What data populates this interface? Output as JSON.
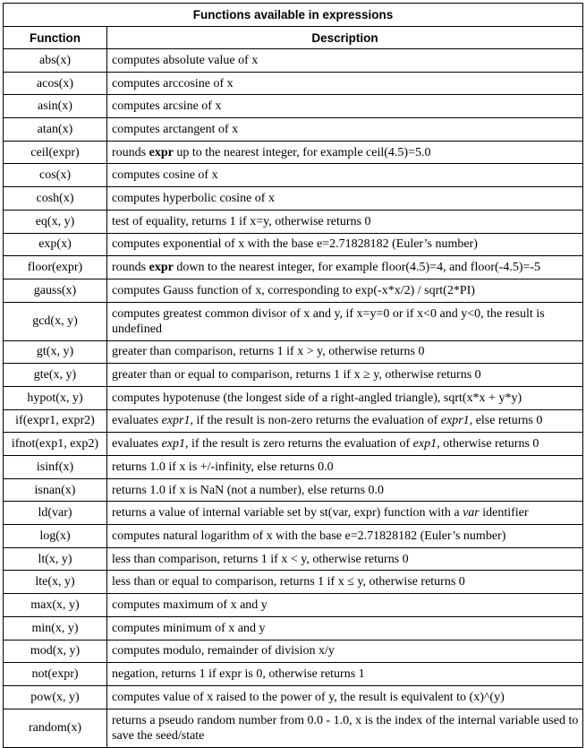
{
  "title": "Functions available in expressions",
  "columns": {
    "function": "Function",
    "description": "Description"
  },
  "rows": [
    {
      "fn": "abs(x)",
      "parts": [
        {
          "t": "computes absolute value of x"
        }
      ]
    },
    {
      "fn": "acos(x)",
      "parts": [
        {
          "t": "computes arccosine of x"
        }
      ]
    },
    {
      "fn": "asin(x)",
      "parts": [
        {
          "t": "computes arcsine of x"
        }
      ]
    },
    {
      "fn": "atan(x)",
      "parts": [
        {
          "t": "computes arctangent of x"
        }
      ]
    },
    {
      "fn": "ceil(expr)",
      "parts": [
        {
          "t": "rounds "
        },
        {
          "t": "expr",
          "b": true
        },
        {
          "t": " up to the nearest integer, for example ceil(4.5)=5.0"
        }
      ]
    },
    {
      "fn": "cos(x)",
      "parts": [
        {
          "t": "computes cosine of x"
        }
      ]
    },
    {
      "fn": "cosh(x)",
      "parts": [
        {
          "t": "computes hyperbolic cosine of x"
        }
      ]
    },
    {
      "fn": "eq(x, y)",
      "parts": [
        {
          "t": "test of equality, returns 1 if x=y, otherwise returns 0"
        }
      ]
    },
    {
      "fn": "exp(x)",
      "parts": [
        {
          "t": "computes exponential of x with the base e=2.71828182 (Euler’s number)"
        }
      ]
    },
    {
      "fn": "floor(expr)",
      "parts": [
        {
          "t": "rounds "
        },
        {
          "t": "expr",
          "b": true
        },
        {
          "t": " down to the nearest integer, for example floor(4.5)=4, and floor(-4.5)=-5"
        }
      ]
    },
    {
      "fn": "gauss(x)",
      "parts": [
        {
          "t": "computes Gauss function of x, corresponding to exp(-x*x/2) / sqrt(2*PI)"
        }
      ]
    },
    {
      "fn": "gcd(x, y)",
      "tall": true,
      "parts": [
        {
          "t": "computes greatest common divisor of x and y, if x=y=0 or if x<0 and y<0, the result is undefined"
        }
      ]
    },
    {
      "fn": "gt(x, y)",
      "parts": [
        {
          "t": "greater than comparison, returns 1 if x > y, otherwise returns 0"
        }
      ]
    },
    {
      "fn": "gte(x, y)",
      "parts": [
        {
          "t": "greater than or equal to comparison, returns 1 if x ≥ y, otherwise returns 0"
        }
      ]
    },
    {
      "fn": "hypot(x, y)",
      "parts": [
        {
          "t": "computes hypotenuse (the longest side of a right-angled triangle), sqrt(x*x + y*y)"
        }
      ]
    },
    {
      "fn": "if(expr1, expr2)",
      "parts": [
        {
          "t": "evaluates "
        },
        {
          "t": "expr1",
          "i": true
        },
        {
          "t": ", if the result is non-zero returns the evaluation of "
        },
        {
          "t": "expr1",
          "i": true
        },
        {
          "t": ", else returns 0"
        }
      ]
    },
    {
      "fn": "ifnot(exp1, exp2)",
      "parts": [
        {
          "t": "evaluates "
        },
        {
          "t": "exp1",
          "i": true
        },
        {
          "t": ", if the result is zero returns the evaluation of "
        },
        {
          "t": "exp1",
          "i": true
        },
        {
          "t": ", otherwise returns 0"
        }
      ]
    },
    {
      "fn": "isinf(x)",
      "parts": [
        {
          "t": "returns 1.0 if x is +/-infinity, else returns 0.0"
        }
      ]
    },
    {
      "fn": "isnan(x)",
      "parts": [
        {
          "t": "returns 1.0 if x is NaN (not a number), else returns 0.0"
        }
      ]
    },
    {
      "fn": "ld(var)",
      "parts": [
        {
          "t": "returns a value of internal variable set by st(var, expr) function with a "
        },
        {
          "t": "var",
          "i": true
        },
        {
          "t": " identifier"
        }
      ]
    },
    {
      "fn": "log(x)",
      "parts": [
        {
          "t": "computes natural logarithm of x with the base e=2.71828182 (Euler’s number)"
        }
      ]
    },
    {
      "fn": "lt(x, y)",
      "parts": [
        {
          "t": "less than comparison, returns 1 if x < y, otherwise returns 0"
        }
      ]
    },
    {
      "fn": "lte(x, y)",
      "parts": [
        {
          "t": "less than or equal to comparison, returns 1 if x ≤ y, otherwise returns 0"
        }
      ]
    },
    {
      "fn": "max(x, y)",
      "parts": [
        {
          "t": "computes maximum of x and y"
        }
      ]
    },
    {
      "fn": "min(x, y)",
      "parts": [
        {
          "t": "computes minimum of x and y"
        }
      ]
    },
    {
      "fn": "mod(x, y)",
      "parts": [
        {
          "t": "computes modulo, remainder of division x/y"
        }
      ]
    },
    {
      "fn": "not(expr)",
      "parts": [
        {
          "t": "negation, returns 1 if expr is 0, otherwise returns 1"
        }
      ]
    },
    {
      "fn": "pow(x, y)",
      "parts": [
        {
          "t": "computes value of x raised to the power of y, the result is equivalent to (x)^(y)"
        }
      ]
    },
    {
      "fn": "random(x)",
      "tall": true,
      "parts": [
        {
          "t": "returns a pseudo random number from 0.0 - 1.0, x is the index of the internal variable used to save the seed/state"
        }
      ]
    }
  ]
}
